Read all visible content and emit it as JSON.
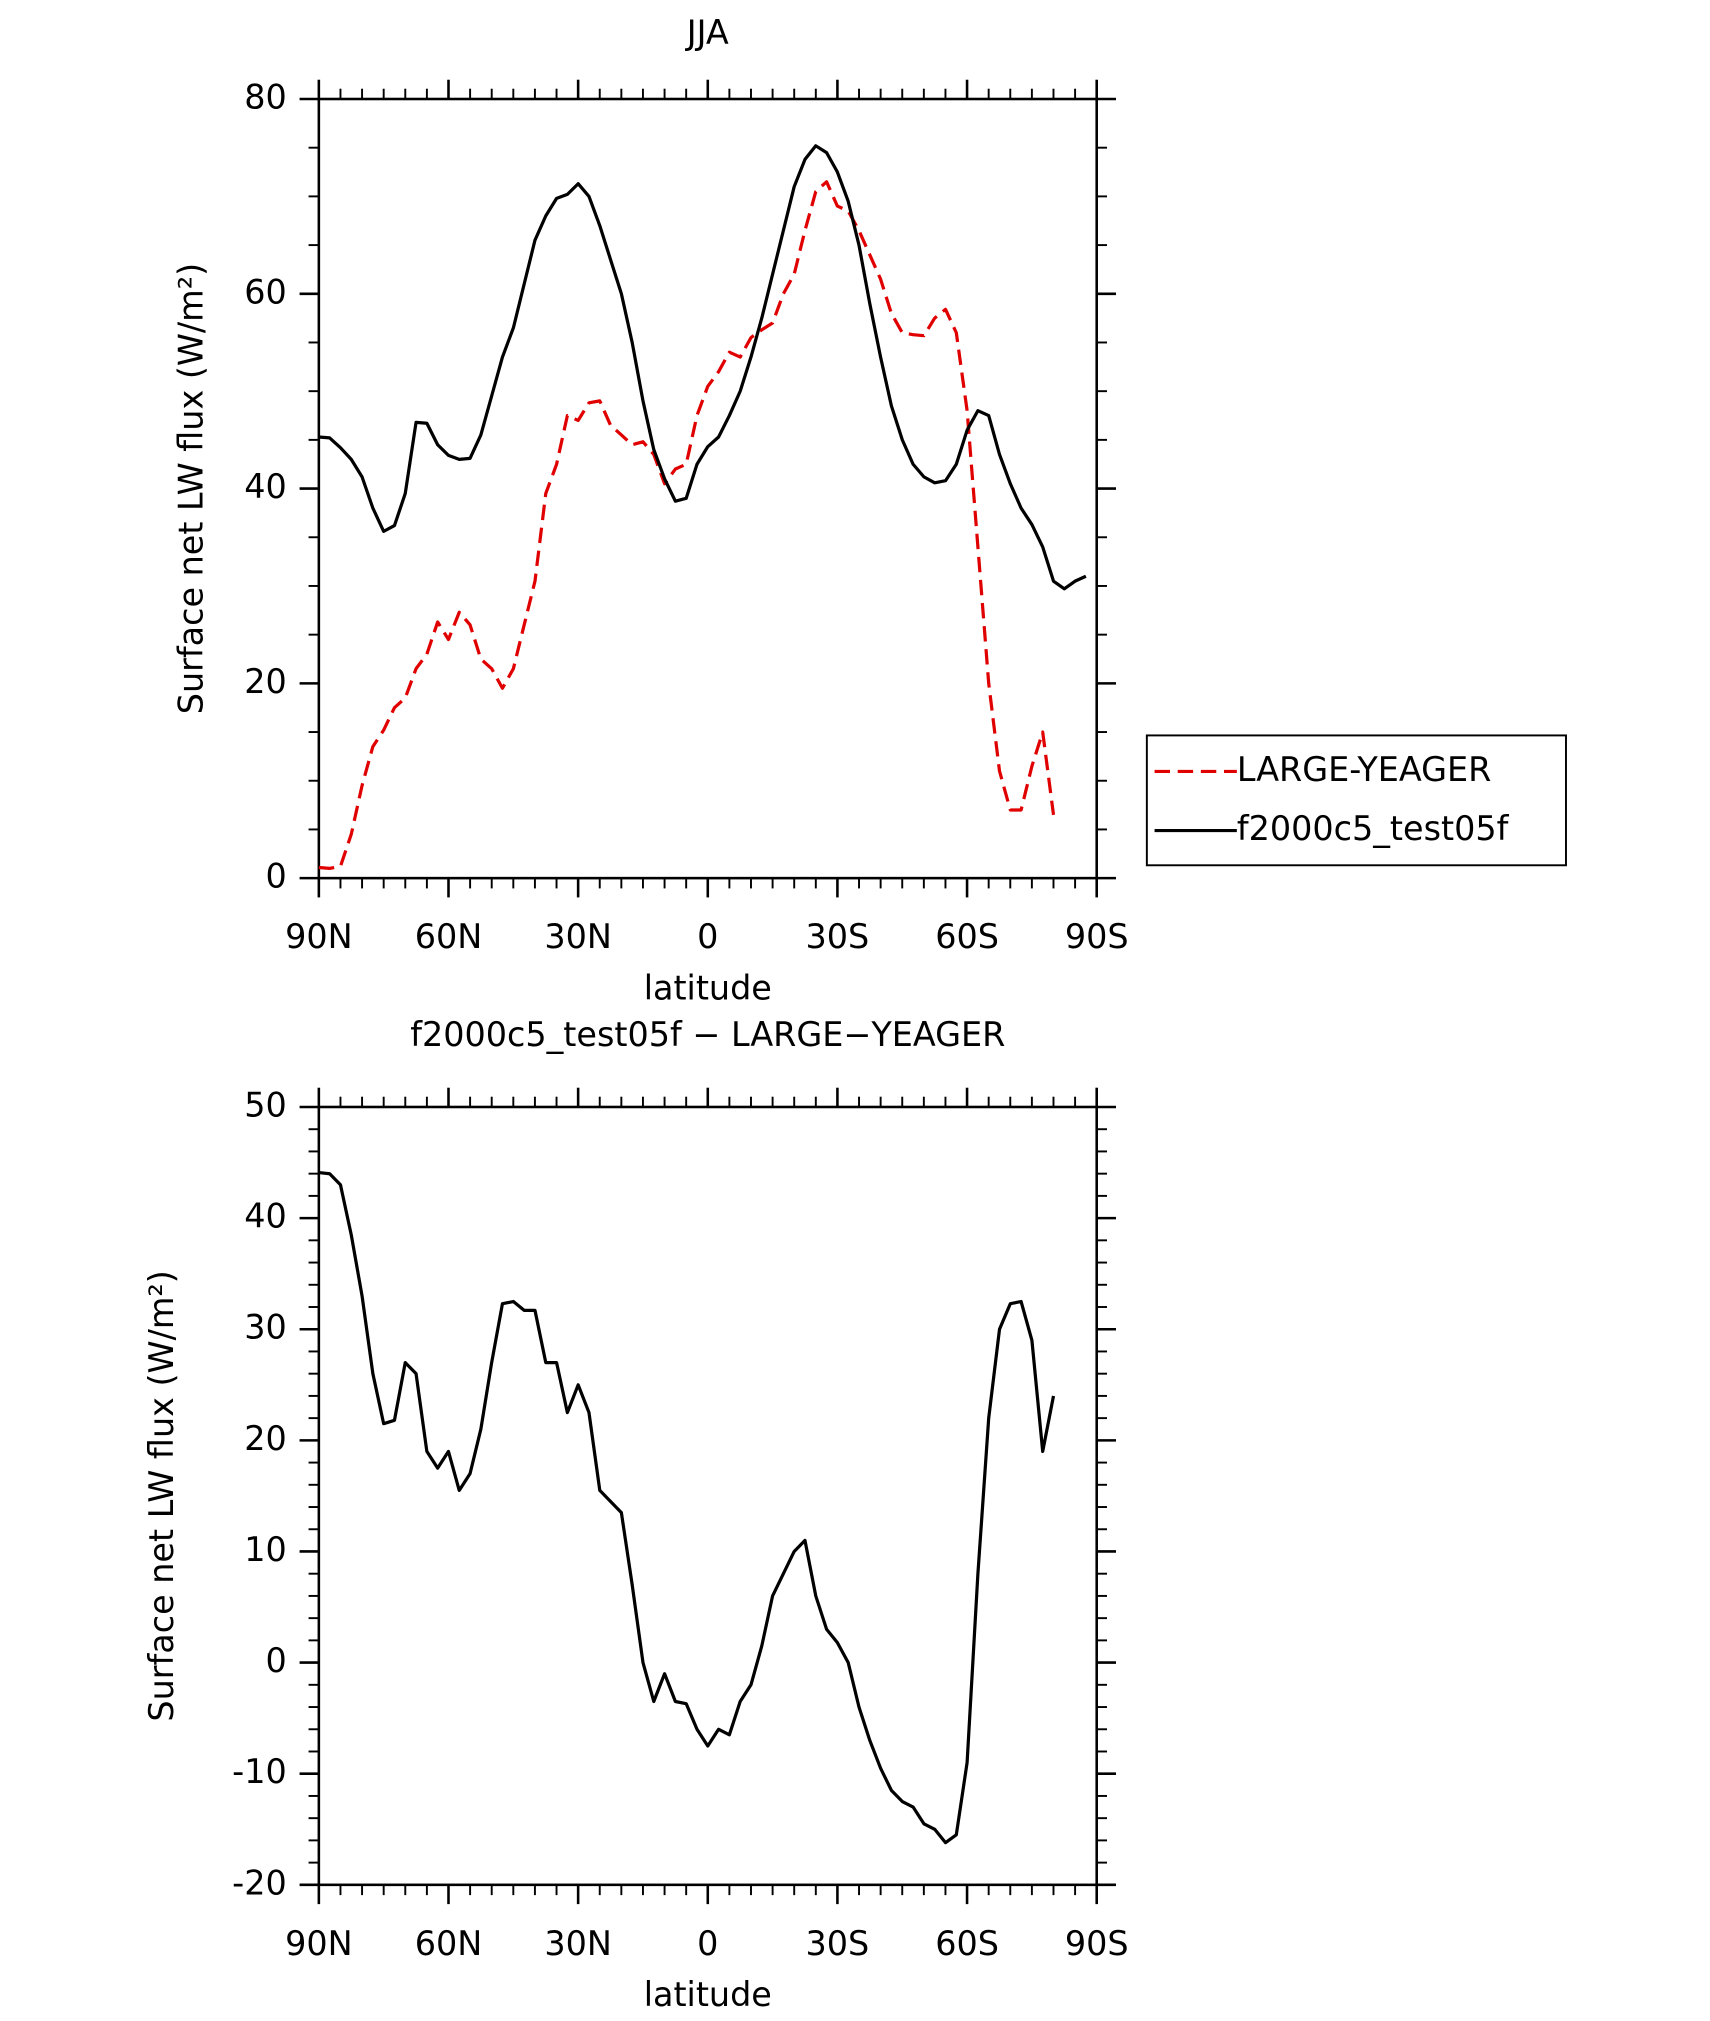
{
  "chart_data": [
    {
      "type": "line",
      "title": "JJA",
      "x_label": "latitude",
      "y_label": "Surface net LW flux (W/m²)",
      "legend": "right",
      "x": [
        90,
        87.5,
        85,
        82.5,
        80,
        77.5,
        75,
        72.5,
        70,
        67.5,
        65,
        62.5,
        60,
        57.5,
        55,
        52.5,
        50,
        47.5,
        45,
        42.5,
        40,
        37.5,
        35,
        32.5,
        30,
        27.5,
        25,
        22.5,
        20,
        17.5,
        15,
        12.5,
        10,
        7.5,
        5,
        2.5,
        0,
        -2.5,
        -5,
        -7.5,
        -10,
        -12.5,
        -15,
        -17.5,
        -20,
        -22.5,
        -25,
        -27.5,
        -30,
        -32.5,
        -35,
        -37.5,
        -40,
        -42.5,
        -45,
        -47.5,
        -50,
        -52.5,
        -55,
        -57.5,
        -60,
        -62.5,
        -65,
        -67.5,
        -70,
        -72.5,
        -75,
        -77.5,
        -80,
        -82.5,
        -85,
        -87.5
      ],
      "xlim": [
        90,
        -90
      ],
      "xticks": [
        {
          "value": 90,
          "label": "90N"
        },
        {
          "value": 60,
          "label": "60N"
        },
        {
          "value": 30,
          "label": "30N"
        },
        0,
        {
          "value": -30,
          "label": "30S"
        },
        {
          "value": -60,
          "label": "60S"
        },
        {
          "value": -90,
          "label": "90S"
        }
      ],
      "ylim": [
        0,
        80
      ],
      "yticks": [
        0,
        20,
        40,
        60,
        80
      ],
      "series": [
        {
          "name": "LARGE-YEAGER",
          "color": "#e00000",
          "dash": true,
          "values": [
            1.1,
            1,
            1.2,
            4.5,
            9.5,
            13.5,
            15.2,
            17.5,
            18.5,
            21.5,
            23,
            26.3,
            24.5,
            27.3,
            26,
            22.5,
            21.5,
            19.5,
            21.5,
            26,
            30.5,
            39.5,
            42.5,
            47.5,
            47,
            48.8,
            49,
            46.5,
            45.5,
            44.5,
            44.8,
            43.5,
            40.5,
            42,
            42.5,
            47.5,
            50.5,
            52,
            54,
            53.5,
            55.5,
            56.3,
            57,
            60,
            62,
            66.5,
            70.5,
            71.5,
            69,
            68.5,
            66.5,
            64,
            61.5,
            58,
            56,
            55.8,
            55.7,
            57.5,
            58.4,
            56,
            48,
            34,
            20,
            11,
            7,
            7,
            11.5,
            15,
            6.5,
            null,
            null,
            null
          ]
        },
        {
          "name": "f2000c5_test05f",
          "color": "#000000",
          "dash": false,
          "values": [
            45.3,
            45.2,
            44.2,
            43,
            41.2,
            38,
            35.6,
            36.2,
            39.5,
            46.8,
            46.7,
            44.5,
            43.4,
            43,
            43.1,
            45.5,
            49.5,
            53.5,
            56.5,
            61,
            65.5,
            68,
            69.8,
            70.2,
            71.3,
            70,
            67,
            63.5,
            60,
            55,
            49,
            44,
            41,
            38.7,
            39,
            42.5,
            44.3,
            45.3,
            47.5,
            50,
            53.5,
            57.5,
            62,
            66.5,
            71,
            73.8,
            75.2,
            74.5,
            72.5,
            69.5,
            65,
            59,
            53.5,
            48.5,
            45,
            42.5,
            41.2,
            40.6,
            40.8,
            42.5,
            46,
            48,
            47.5,
            43.5,
            40.5,
            38,
            36.3,
            34,
            30.5,
            29.7,
            30.5,
            31
          ]
        }
      ]
    },
    {
      "type": "line",
      "title": "f2000c5_test05f − LARGE−YEAGER",
      "x_label": "latitude",
      "y_label": "Surface net LW flux (W/m²)",
      "x": [
        90,
        87.5,
        85,
        82.5,
        80,
        77.5,
        75,
        72.5,
        70,
        67.5,
        65,
        62.5,
        60,
        57.5,
        55,
        52.5,
        50,
        47.5,
        45,
        42.5,
        40,
        37.5,
        35,
        32.5,
        30,
        27.5,
        25,
        22.5,
        20,
        17.5,
        15,
        12.5,
        10,
        7.5,
        5,
        2.5,
        0,
        -2.5,
        -5,
        -7.5,
        -10,
        -12.5,
        -15,
        -17.5,
        -20,
        -22.5,
        -25,
        -27.5,
        -30,
        -32.5,
        -35,
        -37.5,
        -40,
        -42.5,
        -45,
        -47.5,
        -50,
        -52.5,
        -55,
        -57.5,
        -60,
        -62.5,
        -65,
        -67.5,
        -70,
        -72.5,
        -75,
        -77.5,
        -80
      ],
      "xlim": [
        90,
        -90
      ],
      "xticks": [
        {
          "value": 90,
          "label": "90N"
        },
        {
          "value": 60,
          "label": "60N"
        },
        {
          "value": 30,
          "label": "30N"
        },
        0,
        {
          "value": -30,
          "label": "30S"
        },
        {
          "value": -60,
          "label": "60S"
        },
        {
          "value": -90,
          "label": "90S"
        }
      ],
      "ylim": [
        -20,
        50
      ],
      "yticks": [
        -20,
        -10,
        0,
        10,
        20,
        30,
        40,
        50
      ],
      "color": "#000000",
      "values": [
        44.1,
        44,
        43,
        38.5,
        33,
        26,
        21.5,
        21.8,
        27,
        26,
        19,
        17.5,
        19,
        15.5,
        17,
        21,
        27,
        32.3,
        32.5,
        31.7,
        31.7,
        27,
        27,
        22.5,
        25,
        22.5,
        15.5,
        14.5,
        13.5,
        7,
        0,
        -3.5,
        -1,
        -3.5,
        -3.7,
        -6,
        -7.5,
        -6,
        -6.5,
        -3.5,
        -2,
        1.5,
        6,
        8,
        10,
        11,
        6,
        3,
        1.8,
        0,
        -4,
        -7,
        -9.5,
        -11.5,
        -12.5,
        -13,
        -14.5,
        -15,
        -16.2,
        -15.5,
        -9,
        8,
        22,
        30,
        32.3,
        32.5,
        29,
        19,
        24
      ]
    }
  ]
}
